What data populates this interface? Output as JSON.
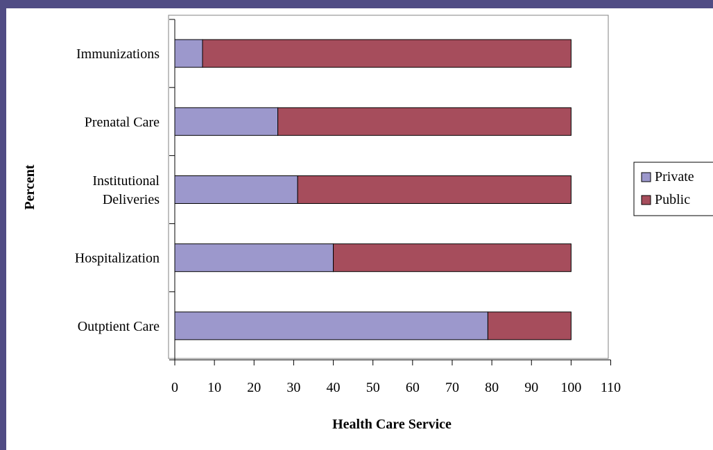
{
  "chart_data": {
    "type": "bar",
    "orientation": "horizontal",
    "stacked": true,
    "categories": [
      "Immunizations",
      "Prenatal Care",
      "Institutional Deliveries",
      "Hospitalization",
      "Outptient Care"
    ],
    "category_lines": [
      [
        "Immunizations"
      ],
      [
        "Prenatal Care"
      ],
      [
        "Institutional",
        "Deliveries"
      ],
      [
        "Hospitalization"
      ],
      [
        "Outptient Care"
      ]
    ],
    "series": [
      {
        "name": "Private",
        "values": [
          7,
          26,
          31,
          40,
          79
        ],
        "color": "#9c98cc"
      },
      {
        "name": "Public",
        "values": [
          93,
          74,
          69,
          60,
          21
        ],
        "color": "#a64d5c"
      }
    ],
    "xlabel": "Health Care Service",
    "ylabel": "Percent",
    "xlim": [
      0,
      110
    ],
    "xticks": [
      0,
      10,
      20,
      30,
      40,
      50,
      60,
      70,
      80,
      90,
      100,
      110
    ],
    "grid": false,
    "legend_position": "right"
  }
}
